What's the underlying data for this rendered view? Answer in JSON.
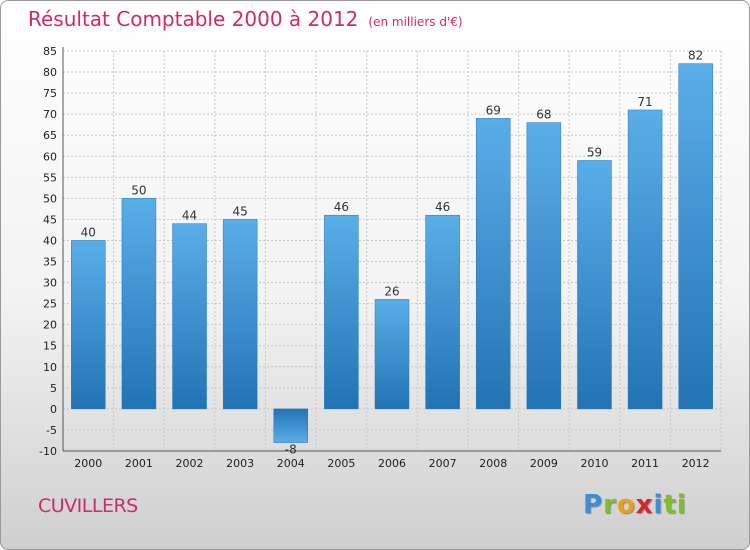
{
  "header": {
    "title": "Résultat Comptable 2000 à 2012",
    "subtitle": "(en milliers d'€)"
  },
  "footer": {
    "location": "CUVILLERS",
    "logo_text": "Proxiti",
    "logo_letters": [
      "P",
      "r",
      "o",
      "x",
      "i",
      "ti"
    ]
  },
  "colors": {
    "title": "#cc2b6d",
    "bar_light": "#5aaee8",
    "bar_dark": "#2273b4",
    "grid": "#c8c8c8"
  },
  "chart_data": {
    "type": "bar",
    "title": "Résultat Comptable 2000 à 2012 (en milliers d'€)",
    "xlabel": "",
    "ylabel": "",
    "categories": [
      "2000",
      "2001",
      "2002",
      "2003",
      "2004",
      "2005",
      "2006",
      "2007",
      "2008",
      "2009",
      "2010",
      "2011",
      "2012"
    ],
    "values": [
      40,
      50,
      44,
      45,
      -8,
      46,
      26,
      46,
      69,
      68,
      59,
      71,
      82
    ],
    "data_labels": [
      "40",
      "50",
      "44",
      "45",
      "-8",
      "46",
      "26",
      "46",
      "69",
      "68",
      "59",
      "71",
      "82"
    ],
    "ylim": [
      -10,
      85
    ],
    "yticks": [
      -10,
      -5,
      0,
      5,
      10,
      15,
      20,
      25,
      30,
      35,
      40,
      45,
      50,
      55,
      60,
      65,
      70,
      75,
      80,
      85
    ],
    "ytick_labels": [
      "-10",
      "-5",
      "0",
      "5",
      "10",
      "15",
      "20",
      "25",
      "30",
      "35",
      "40",
      "45",
      "50",
      "55",
      "60",
      "65",
      "70",
      "75",
      "80",
      "85"
    ],
    "grid": true,
    "legend": "none"
  }
}
